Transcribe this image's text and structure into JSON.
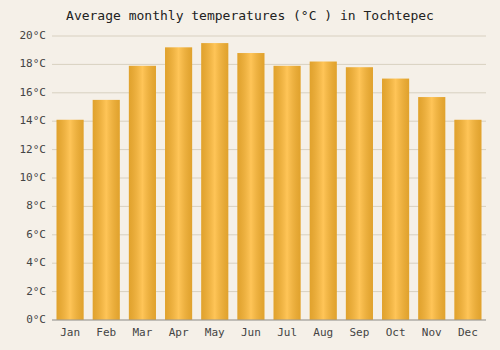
{
  "chart_data": {
    "type": "bar",
    "title": "Average monthly temperatures (°C ) in Tochtepec",
    "categories": [
      "Jan",
      "Feb",
      "Mar",
      "Apr",
      "May",
      "Jun",
      "Jul",
      "Aug",
      "Sep",
      "Oct",
      "Nov",
      "Dec"
    ],
    "values": [
      14.1,
      15.5,
      17.9,
      19.2,
      19.5,
      18.8,
      17.9,
      18.2,
      17.8,
      17.0,
      15.7,
      14.1
    ],
    "color": "#FFB833",
    "ylim": [
      0,
      20
    ],
    "yticks": [
      {
        "value": 0,
        "label": "0°C"
      },
      {
        "value": 2,
        "label": "2°C"
      },
      {
        "value": 4,
        "label": "4°C"
      },
      {
        "value": 6,
        "label": "6°C"
      },
      {
        "value": 8,
        "label": "8°C"
      },
      {
        "value": 10,
        "label": "10°C"
      },
      {
        "value": 12,
        "label": "12°C"
      },
      {
        "value": 14,
        "label": "14°C"
      },
      {
        "value": 16,
        "label": "16°C"
      },
      {
        "value": 18,
        "label": "18°C"
      },
      {
        "value": 20,
        "label": "20°C"
      }
    ],
    "grid": true
  }
}
